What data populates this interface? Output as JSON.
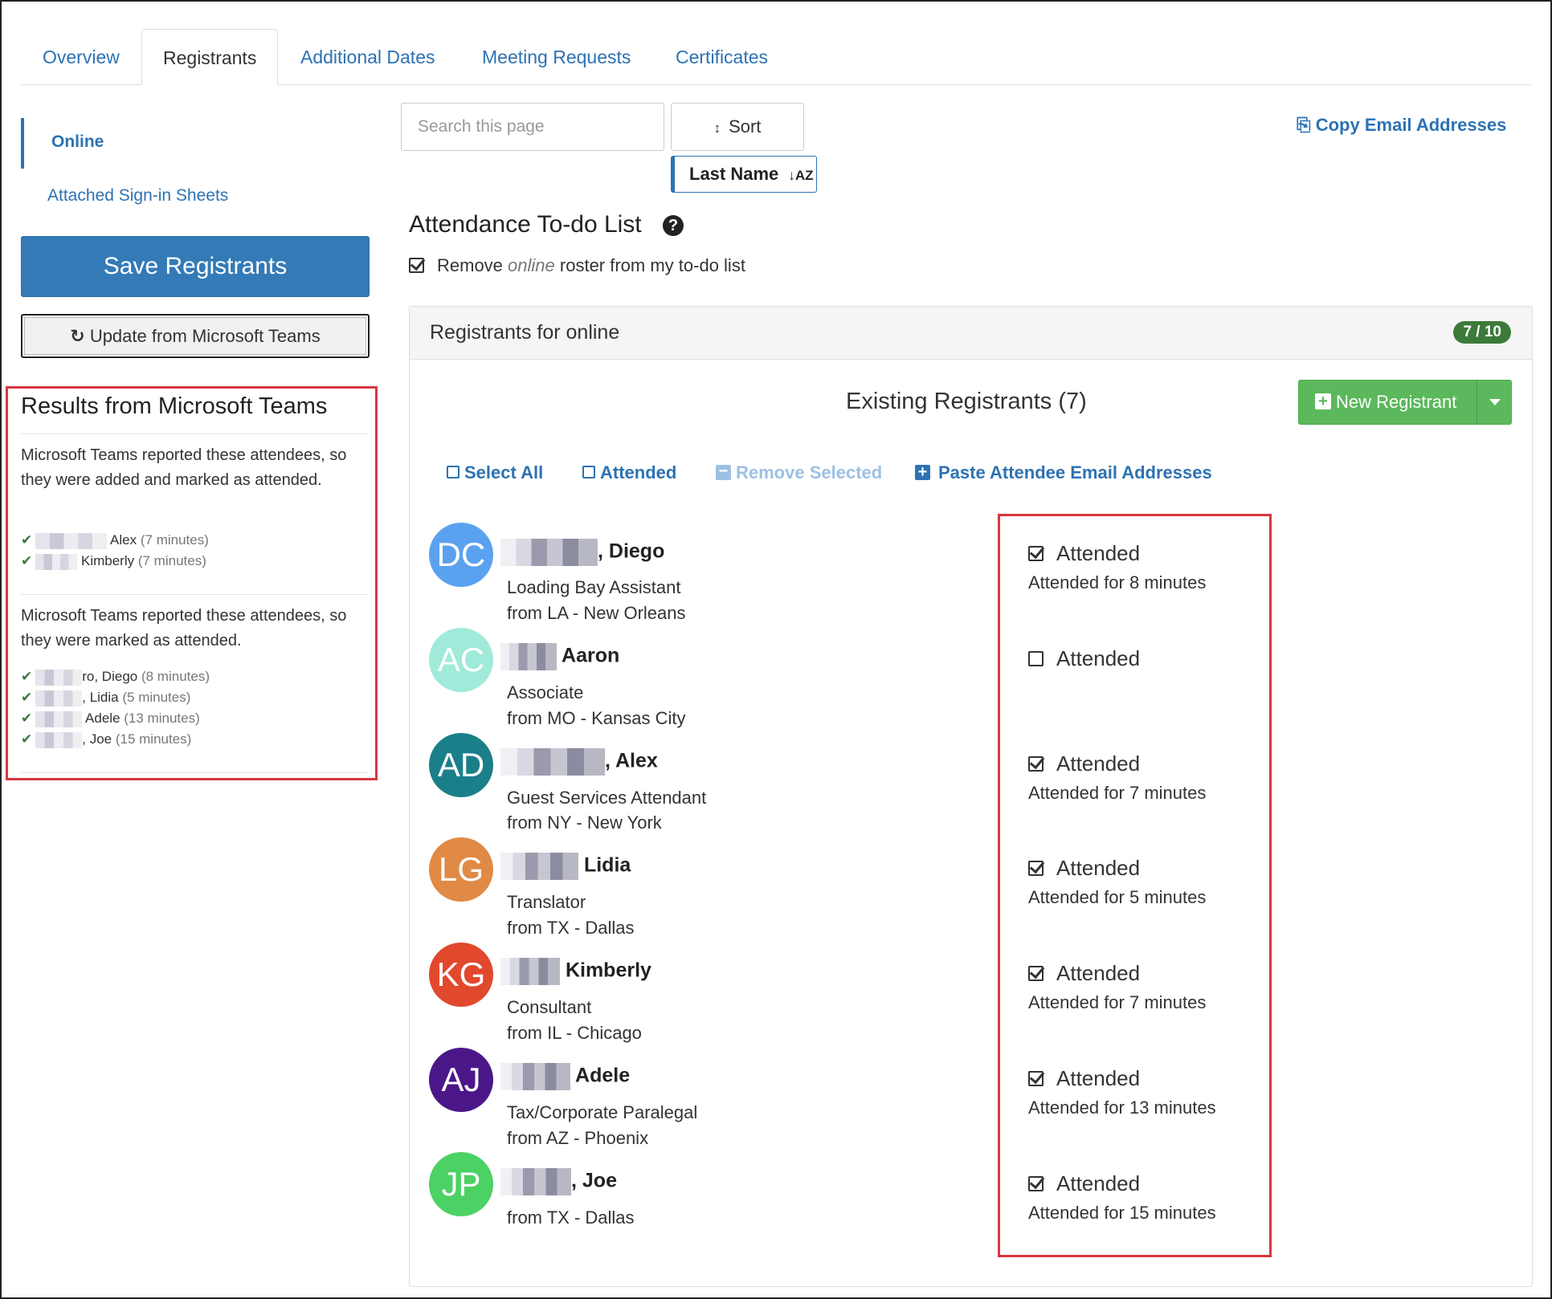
{
  "tabs": [
    {
      "label": "Overview"
    },
    {
      "label": "Registrants"
    },
    {
      "label": "Additional Dates"
    },
    {
      "label": "Meeting Requests"
    },
    {
      "label": "Certificates"
    }
  ],
  "sidenav": {
    "online": "Online",
    "attached": "Attached Sign-in Sheets"
  },
  "buttons": {
    "save": "Save Registrants",
    "update": "Update from Microsoft Teams",
    "sort": "Sort",
    "last_name": "Last Name",
    "copy_email": "Copy Email Addresses",
    "new_registrant": "New Registrant"
  },
  "search": {
    "placeholder": "Search this page"
  },
  "results": {
    "title": "Results from Microsoft Teams",
    "added_text": "Microsoft Teams reported these attendees, so they were added and marked as attended.",
    "added": [
      {
        "name": "Alex",
        "duration": "(7 minutes)"
      },
      {
        "name": "Kimberly",
        "duration": "(7 minutes)"
      }
    ],
    "marked_text": "Microsoft Teams reported these attendees, so they were marked as attended.",
    "marked": [
      {
        "name": "ro, Diego",
        "duration": "(8 minutes)"
      },
      {
        "name": ", Lidia",
        "duration": "(5 minutes)"
      },
      {
        "name": "Adele",
        "duration": "(13 minutes)"
      },
      {
        "name": ", Joe",
        "duration": "(15 minutes)"
      }
    ]
  },
  "todo": {
    "title": "Attendance To-do List",
    "remove_pre": "Remove",
    "remove_em": "online",
    "remove_post": "roster from my to-do list"
  },
  "panel": {
    "title": "Registrants for online",
    "badge": "7 / 10",
    "existing": "Existing Registrants (7)",
    "actions": {
      "select_all": "Select All",
      "attended": "Attended",
      "remove_selected": "Remove Selected",
      "paste": "Paste Attendee Email Addresses"
    }
  },
  "colors": {
    "accent": "#2d72b3",
    "success": "#5cb85c",
    "badge": "#3c7a3a",
    "highlight": "#d9363e"
  },
  "registrants": [
    {
      "initials": "DC",
      "color": "#5aa2f0",
      "name": ", Diego",
      "title": "Loading Bay Assistant",
      "location": "from LA - New Orleans",
      "attended": true,
      "attended_label": "Attended",
      "duration": "Attended for 8 minutes"
    },
    {
      "initials": "AC",
      "color": "#9fead8",
      "name": "Aaron",
      "title": "Associate",
      "location": "from MO - Kansas City",
      "attended": false,
      "attended_label": "Attended",
      "duration": ""
    },
    {
      "initials": "AD",
      "color": "#1b7f8a",
      "name": ", Alex",
      "title": "Guest Services Attendant",
      "location": "from NY - New York",
      "attended": true,
      "attended_label": "Attended",
      "duration": "Attended for 7 minutes"
    },
    {
      "initials": "LG",
      "color": "#e08a45",
      "name": "Lidia",
      "title": "Translator",
      "location": "from TX - Dallas",
      "attended": true,
      "attended_label": "Attended",
      "duration": "Attended for 5 minutes"
    },
    {
      "initials": "KG",
      "color": "#e2482c",
      "name": "Kimberly",
      "title": "Consultant",
      "location": "from IL - Chicago",
      "attended": true,
      "attended_label": "Attended",
      "duration": "Attended for 7 minutes"
    },
    {
      "initials": "AJ",
      "color": "#4b1788",
      "name": "Adele",
      "title": "Tax/Corporate Paralegal",
      "location": "from AZ - Phoenix",
      "attended": true,
      "attended_label": "Attended",
      "duration": "Attended for 13 minutes"
    },
    {
      "initials": "JP",
      "color": "#4cd164",
      "name": ", Joe",
      "title": "",
      "location": "from TX - Dallas",
      "attended": true,
      "attended_label": "Attended",
      "duration": "Attended for 15 minutes"
    }
  ]
}
